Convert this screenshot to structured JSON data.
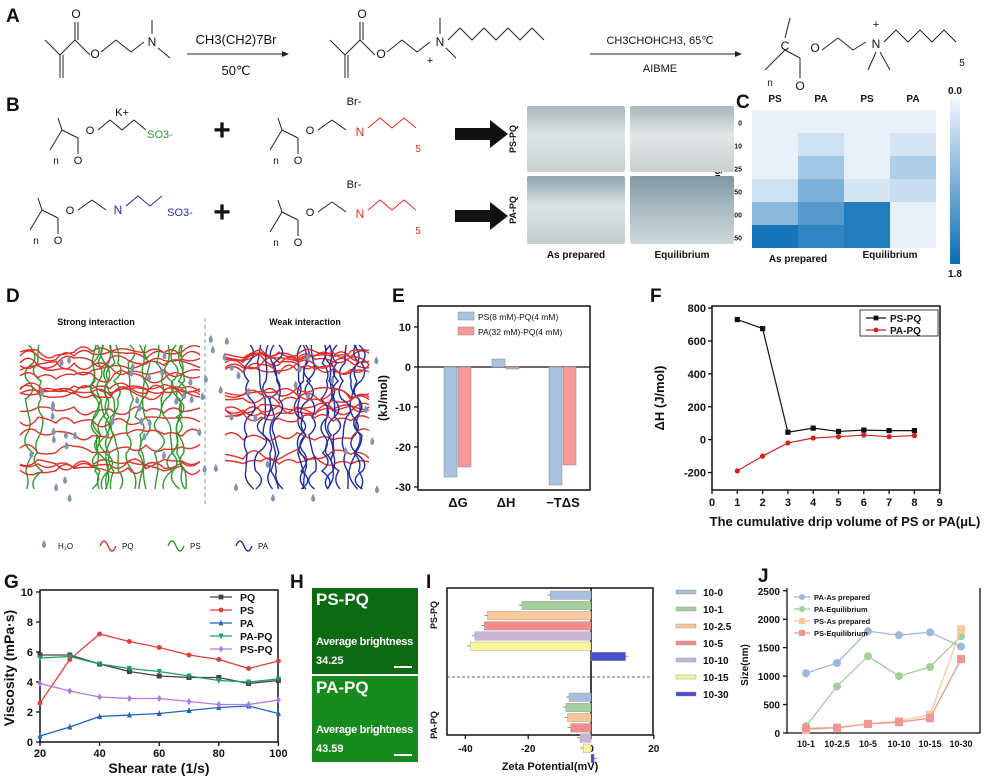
{
  "panel_labels": [
    "A",
    "B",
    "C",
    "D",
    "E",
    "F",
    "G",
    "H",
    "I",
    "J"
  ],
  "scheme_a": {
    "reagent1": "CH3(CH2)7Br",
    "condition1": "50℃",
    "reagent2": "CH3CHOHCH3, 65℃",
    "condition2": "AIBME",
    "atoms": {
      "O": "O",
      "N": "N",
      "plus": "+",
      "n": "n",
      "sub5": "5",
      "C": "C"
    }
  },
  "scheme_b": {
    "k_ion": "K+",
    "so3": "SO3-",
    "br": "Br-",
    "plus_sign": "+",
    "photo_rows": [
      "PS-PQ",
      "PA-PQ"
    ],
    "photo_cols": [
      "As prepared",
      "Equilibrium"
    ]
  },
  "colors": {
    "ps": "#2e9a2e",
    "pa": "#1f2fa0",
    "pq": "#e0302b",
    "heat_low": "#eef4fc",
    "heat_high": "#0a6db5"
  },
  "panel_d": {
    "titles": [
      "Strong interaction",
      "Weak interaction"
    ],
    "legend": [
      "H₂O",
      "PQ",
      "PS",
      "PA"
    ]
  },
  "panel_h": {
    "images": [
      {
        "title": "PS-PQ",
        "label": "Average brightness",
        "value": "34.25"
      },
      {
        "title": "PA-PQ",
        "label": "Average brightness",
        "value": "43.59"
      }
    ]
  },
  "chart_data": [
    {
      "id": "C",
      "type": "heatmap",
      "columns": [
        "PS",
        "PA",
        "PS",
        "PA"
      ],
      "column_groups": [
        "As prepared",
        "Equilibrium"
      ],
      "rows": [
        "0",
        "10",
        "25",
        "50",
        "100",
        "150"
      ],
      "ylabel": "PQ Adding(%)",
      "values": [
        [
          0.05,
          0.05,
          0.05,
          0.05
        ],
        [
          0.05,
          0.25,
          0.05,
          0.2
        ],
        [
          0.05,
          0.6,
          0.05,
          0.5
        ],
        [
          0.25,
          0.9,
          0.2,
          0.3
        ],
        [
          0.8,
          1.2,
          1.6,
          0.05
        ],
        [
          1.7,
          1.5,
          1.6,
          0.05
        ]
      ],
      "colorbar": {
        "min": 0.0,
        "max": 1.8,
        "min_label": "0.0",
        "max_label": "1.8"
      }
    },
    {
      "id": "E",
      "type": "bar",
      "categories": [
        "ΔG",
        "ΔH",
        "−TΔS"
      ],
      "series": [
        {
          "name": "PS(8 mM)-PQ(4 mM)",
          "color": "#a7c3e0",
          "values": [
            -27.5,
            2,
            -29.5
          ]
        },
        {
          "name": "PA(32 mM)-PQ(4 mM)",
          "color": "#f59a97",
          "values": [
            -25,
            -0.5,
            -24.5
          ]
        }
      ],
      "ylabel": "(kJ/mol)",
      "ylim": [
        -30,
        15
      ],
      "yticks": [
        "10",
        "0",
        "-10",
        "-20",
        "-30"
      ],
      "ytick_values": [
        10,
        0,
        -10,
        -20,
        -30
      ]
    },
    {
      "id": "F",
      "type": "line",
      "x": [
        1,
        2,
        3,
        4,
        5,
        6,
        7,
        8
      ],
      "series": [
        {
          "name": "PS-PQ",
          "color": "#111111",
          "marker": "square",
          "values": [
            730,
            675,
            45,
            70,
            50,
            58,
            55,
            55
          ]
        },
        {
          "name": "PA-PQ",
          "color": "#d8201c",
          "marker": "circle",
          "values": [
            -190,
            -100,
            -20,
            10,
            18,
            28,
            18,
            25
          ]
        }
      ],
      "xlabel": "The cumulative drip volume of PS or PA(μL)",
      "ylabel": "ΔH (J/mol)",
      "xlim": [
        0,
        9
      ],
      "ylim": [
        -300,
        800
      ],
      "xticks": [
        "0",
        "1",
        "2",
        "3",
        "4",
        "5",
        "6",
        "7",
        "8",
        "9"
      ],
      "yticks": [
        "800",
        "600",
        "400",
        "200",
        "0",
        "-200"
      ],
      "ytick_values": [
        800,
        600,
        400,
        200,
        0,
        -200
      ],
      "legend": "top-right"
    },
    {
      "id": "G",
      "type": "line",
      "x": [
        20,
        30,
        40,
        50,
        60,
        70,
        80,
        90,
        100
      ],
      "series": [
        {
          "name": "PQ",
          "color": "#444444",
          "marker": "square",
          "values": [
            5.8,
            5.8,
            5.2,
            4.7,
            4.4,
            4.3,
            4.3,
            3.9,
            4.1
          ]
        },
        {
          "name": "PS",
          "color": "#e0413a",
          "marker": "circle",
          "values": [
            2.6,
            5.5,
            7.2,
            6.7,
            6.3,
            5.8,
            5.5,
            4.9,
            5.4
          ]
        },
        {
          "name": "PA",
          "color": "#1f63c0",
          "marker": "triangle",
          "values": [
            0.4,
            1.0,
            1.7,
            1.8,
            1.9,
            2.1,
            2.3,
            2.4,
            1.9
          ]
        },
        {
          "name": "PA-PQ",
          "color": "#1aa064",
          "marker": "triangle-down",
          "values": [
            5.6,
            5.7,
            5.2,
            4.9,
            4.7,
            4.4,
            4.1,
            4.0,
            4.2
          ]
        },
        {
          "name": "PS-PQ",
          "color": "#b07be0",
          "marker": "diamond",
          "values": [
            3.9,
            3.4,
            3.0,
            2.9,
            2.9,
            2.7,
            2.5,
            2.5,
            2.8
          ]
        }
      ],
      "xlabel": "Shear rate (1/s)",
      "ylabel": "Viscosity (mPa·s)",
      "xlim": [
        20,
        100
      ],
      "ylim": [
        0,
        10
      ],
      "xticks": [
        "20",
        "40",
        "60",
        "80",
        "100"
      ],
      "xtick_values": [
        20,
        40,
        60,
        80,
        100
      ],
      "yticks": [
        "0",
        "2",
        "4",
        "6",
        "8",
        "10"
      ],
      "ytick_values": [
        0,
        2,
        4,
        6,
        8,
        10
      ],
      "legend": "top-right"
    },
    {
      "id": "I",
      "type": "bar",
      "orientation": "horizontal",
      "groups": [
        "PS-PQ",
        "PA-PQ"
      ],
      "series": [
        {
          "name": "10-0",
          "color": "#a7bfdc",
          "values": [
            -13,
            -7
          ]
        },
        {
          "name": "10-1",
          "color": "#a6cfa0",
          "values": [
            -22,
            -8
          ]
        },
        {
          "name": "10-2.5",
          "color": "#f9c79a",
          "values": [
            -33,
            -7.5
          ]
        },
        {
          "name": "10-5",
          "color": "#f48a8a",
          "values": [
            -34,
            -6.5
          ]
        },
        {
          "name": "10-10",
          "color": "#c9b3d6",
          "values": [
            -37,
            -3.5
          ]
        },
        {
          "name": "10-15",
          "color": "#f8f59a",
          "values": [
            -38.5,
            -2.5
          ]
        },
        {
          "name": "10-30",
          "color": "#4a4fcf",
          "values": [
            11,
            1
          ]
        }
      ],
      "xlabel": "Zeta Potential(mV)",
      "xlim": [
        -45,
        20
      ],
      "xticks": [
        "-40",
        "-20",
        "0",
        "20"
      ],
      "xtick_values": [
        -40,
        -20,
        0,
        20
      ]
    },
    {
      "id": "J",
      "type": "line",
      "categories": [
        "10-1",
        "10-2.5",
        "10-5",
        "10-10",
        "10-15",
        "10-30"
      ],
      "series": [
        {
          "name": "PA-As prepared",
          "color": "#9db8dc",
          "marker": "circle",
          "values": [
            1050,
            1230,
            1790,
            1720,
            1770,
            1520
          ]
        },
        {
          "name": "PA-Equilibrium",
          "color": "#a3cf9c",
          "marker": "circle",
          "values": [
            120,
            820,
            1350,
            1000,
            1160,
            1700
          ]
        },
        {
          "name": "PS-As prepared",
          "color": "#f9c99c",
          "marker": "square",
          "values": [
            60,
            90,
            160,
            210,
            320,
            1820
          ]
        },
        {
          "name": "PS-Equilibrium",
          "color": "#f29494",
          "marker": "square",
          "values": [
            80,
            95,
            160,
            190,
            260,
            1300
          ]
        }
      ],
      "ylabel": "Size(nm)",
      "ylim": [
        0,
        2500
      ],
      "yticks": [
        "0",
        "500",
        "1000",
        "1500",
        "2000",
        "2500"
      ],
      "ytick_values": [
        0,
        500,
        1000,
        1500,
        2000,
        2500
      ],
      "legend": "top-left"
    }
  ]
}
